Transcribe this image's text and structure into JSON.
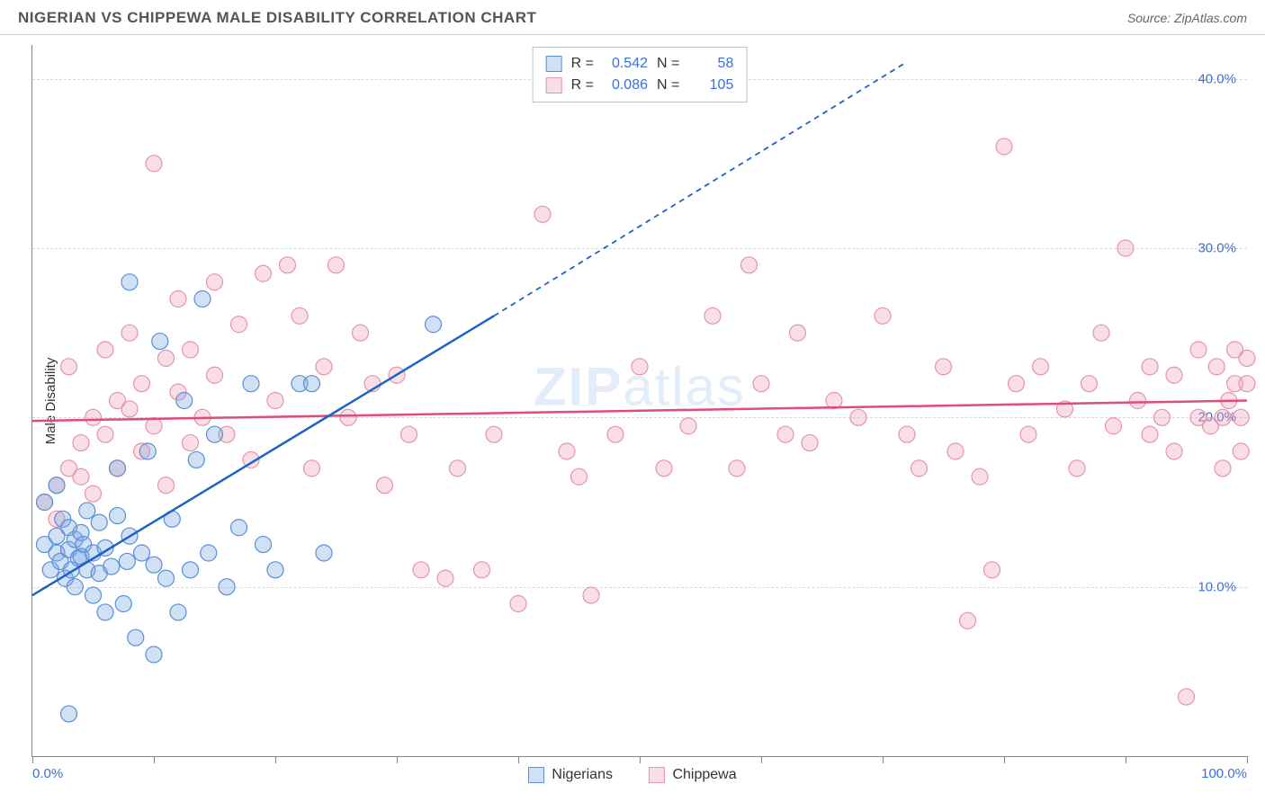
{
  "header": {
    "title": "NIGERIAN VS CHIPPEWA MALE DISABILITY CORRELATION CHART",
    "source": "Source: ZipAtlas.com"
  },
  "watermark": {
    "pre": "ZIP",
    "post": "atlas"
  },
  "chart": {
    "type": "scatter",
    "ylabel": "Male Disability",
    "xlim": [
      0,
      100
    ],
    "ylim": [
      0,
      42
    ],
    "yticks": [
      10,
      20,
      30,
      40
    ],
    "ytick_labels": [
      "10.0%",
      "20.0%",
      "30.0%",
      "40.0%"
    ],
    "xticks": [
      0,
      10,
      20,
      30,
      40,
      50,
      60,
      70,
      80,
      90,
      100
    ],
    "xtick_labels_shown": {
      "0": "0.0%",
      "100": "100.0%"
    },
    "grid_color": "#dcdcdc",
    "background_color": "#ffffff",
    "marker_radius": 9,
    "marker_stroke_width": 1.2,
    "trend_line_width": 2.5,
    "dashed_pattern": "6,5",
    "series": [
      {
        "name": "Nigerians",
        "fill": "rgba(120,165,225,0.35)",
        "stroke": "#5b8fd6",
        "R": "0.542",
        "N": "58",
        "trend": {
          "x1": 0,
          "y1": 9.5,
          "x2": 38,
          "y2": 26,
          "dash_to_x": 72,
          "dash_to_y": 41,
          "color": "#1b63c7"
        },
        "points": [
          [
            1,
            12.5
          ],
          [
            1.5,
            11
          ],
          [
            2,
            13
          ],
          [
            2,
            12
          ],
          [
            2.3,
            11.5
          ],
          [
            2.5,
            14
          ],
          [
            2.7,
            10.5
          ],
          [
            3,
            12.2
          ],
          [
            3,
            13.5
          ],
          [
            3.2,
            11
          ],
          [
            3.5,
            12.8
          ],
          [
            3.5,
            10
          ],
          [
            3.8,
            11.7
          ],
          [
            4,
            13.2
          ],
          [
            4,
            11.8
          ],
          [
            4.2,
            12.5
          ],
          [
            4.5,
            14.5
          ],
          [
            4.5,
            11
          ],
          [
            5,
            12
          ],
          [
            5,
            9.5
          ],
          [
            5.5,
            13.8
          ],
          [
            5.5,
            10.8
          ],
          [
            6,
            12.3
          ],
          [
            6,
            8.5
          ],
          [
            6.5,
            11.2
          ],
          [
            7,
            14.2
          ],
          [
            7,
            17
          ],
          [
            7.5,
            9
          ],
          [
            7.8,
            11.5
          ],
          [
            8,
            13
          ],
          [
            8,
            28
          ],
          [
            8.5,
            7
          ],
          [
            9,
            12
          ],
          [
            9.5,
            18
          ],
          [
            10,
            11.3
          ],
          [
            10,
            6
          ],
          [
            10.5,
            24.5
          ],
          [
            11,
            10.5
          ],
          [
            11.5,
            14
          ],
          [
            12,
            8.5
          ],
          [
            12.5,
            21
          ],
          [
            13,
            11
          ],
          [
            13.5,
            17.5
          ],
          [
            14,
            27
          ],
          [
            14.5,
            12
          ],
          [
            15,
            19
          ],
          [
            16,
            10
          ],
          [
            17,
            13.5
          ],
          [
            18,
            22
          ],
          [
            19,
            12.5
          ],
          [
            20,
            11
          ],
          [
            22,
            22
          ],
          [
            23,
            22
          ],
          [
            24,
            12
          ],
          [
            33,
            25.5
          ],
          [
            3,
            2.5
          ],
          [
            1,
            15
          ],
          [
            2,
            16
          ]
        ]
      },
      {
        "name": "Chippewa",
        "fill": "rgba(240,160,180,0.35)",
        "stroke": "#e594ab",
        "R": "0.086",
        "N": "105",
        "trend": {
          "x1": 0,
          "y1": 19.8,
          "x2": 100,
          "y2": 21,
          "color": "#e14a7a"
        },
        "points": [
          [
            1,
            15
          ],
          [
            2,
            16
          ],
          [
            2,
            14
          ],
          [
            3,
            17
          ],
          [
            3,
            23
          ],
          [
            4,
            18.5
          ],
          [
            4,
            16.5
          ],
          [
            5,
            15.5
          ],
          [
            5,
            20
          ],
          [
            6,
            19
          ],
          [
            6,
            24
          ],
          [
            7,
            21
          ],
          [
            7,
            17
          ],
          [
            8,
            20.5
          ],
          [
            8,
            25
          ],
          [
            9,
            22
          ],
          [
            9,
            18
          ],
          [
            10,
            35
          ],
          [
            10,
            19.5
          ],
          [
            11,
            23.5
          ],
          [
            11,
            16
          ],
          [
            12,
            21.5
          ],
          [
            12,
            27
          ],
          [
            13,
            24
          ],
          [
            13,
            18.5
          ],
          [
            14,
            20
          ],
          [
            15,
            22.5
          ],
          [
            15,
            28
          ],
          [
            16,
            19
          ],
          [
            17,
            25.5
          ],
          [
            18,
            17.5
          ],
          [
            19,
            28.5
          ],
          [
            20,
            21
          ],
          [
            21,
            29
          ],
          [
            22,
            26
          ],
          [
            23,
            17
          ],
          [
            24,
            23
          ],
          [
            25,
            29
          ],
          [
            26,
            20
          ],
          [
            27,
            25
          ],
          [
            28,
            22
          ],
          [
            29,
            16
          ],
          [
            30,
            22.5
          ],
          [
            31,
            19
          ],
          [
            32,
            11
          ],
          [
            34,
            10.5
          ],
          [
            35,
            17
          ],
          [
            37,
            11
          ],
          [
            38,
            19
          ],
          [
            40,
            9
          ],
          [
            42,
            32
          ],
          [
            44,
            18
          ],
          [
            45,
            16.5
          ],
          [
            46,
            9.5
          ],
          [
            48,
            19
          ],
          [
            50,
            23
          ],
          [
            52,
            17
          ],
          [
            54,
            19.5
          ],
          [
            56,
            26
          ],
          [
            58,
            17
          ],
          [
            59,
            29
          ],
          [
            60,
            22
          ],
          [
            62,
            19
          ],
          [
            63,
            25
          ],
          [
            64,
            18.5
          ],
          [
            66,
            21
          ],
          [
            68,
            20
          ],
          [
            70,
            26
          ],
          [
            72,
            19
          ],
          [
            73,
            17
          ],
          [
            75,
            23
          ],
          [
            76,
            18
          ],
          [
            77,
            8
          ],
          [
            78,
            16.5
          ],
          [
            79,
            11
          ],
          [
            80,
            36
          ],
          [
            81,
            22
          ],
          [
            82,
            19
          ],
          [
            83,
            23
          ],
          [
            85,
            20.5
          ],
          [
            86,
            17
          ],
          [
            87,
            22
          ],
          [
            88,
            25
          ],
          [
            89,
            19.5
          ],
          [
            90,
            30
          ],
          [
            91,
            21
          ],
          [
            92,
            19
          ],
          [
            93,
            20
          ],
          [
            94,
            22.5
          ],
          [
            95,
            3.5
          ],
          [
            96,
            20
          ],
          [
            97,
            19.5
          ],
          [
            97.5,
            23
          ],
          [
            98,
            20
          ],
          [
            98.5,
            21
          ],
          [
            99,
            24
          ],
          [
            99,
            22
          ],
          [
            99.5,
            20
          ],
          [
            99.5,
            18
          ],
          [
            100,
            23.5
          ],
          [
            100,
            22
          ],
          [
            98,
            17
          ],
          [
            96,
            24
          ],
          [
            94,
            18
          ],
          [
            92,
            23
          ]
        ]
      }
    ]
  },
  "stats_legend": {
    "r_label": "R =",
    "n_label": "N ="
  },
  "bottom_legend": {
    "items": [
      "Nigerians",
      "Chippewa"
    ]
  }
}
